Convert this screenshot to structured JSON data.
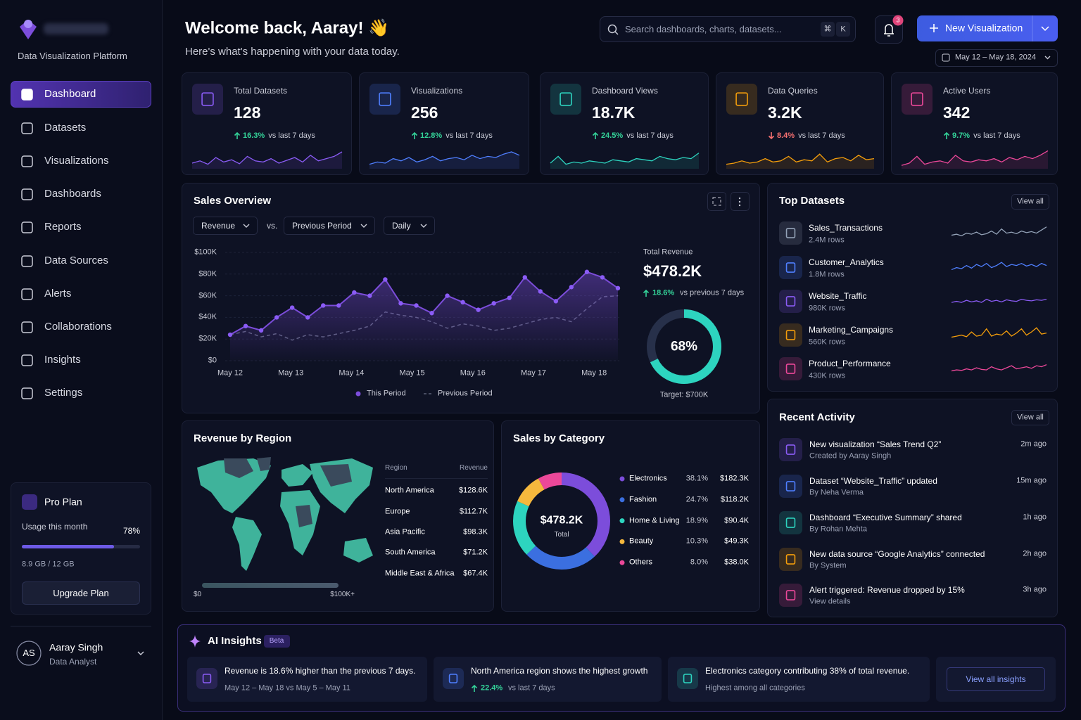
{
  "sidebar": {
    "tagline": "Data Visualization Platform",
    "nav": [
      "Dashboard",
      "Datasets",
      "Visualizations",
      "Dashboards",
      "Reports",
      "Data Sources",
      "Alerts",
      "Collaborations",
      "Insights",
      "Settings"
    ],
    "plan": {
      "title": "Pro Plan",
      "usage_label": "Usage this month",
      "usage": {
        "value": 78,
        "label": "78%"
      },
      "storage": "8.9 GB / 12 GB",
      "button": "Upgrade Plan"
    },
    "user": {
      "initials": "AS",
      "name": "Aaray Singh",
      "role": "Data Analyst"
    }
  },
  "header": {
    "title": "Welcome back, Aaray! 👋",
    "subtitle": "Here's what's happening with your data today.",
    "search": "Search dashboards, charts, datasets...",
    "shortcut": [
      "⌘",
      "K"
    ],
    "notifications": "3",
    "button": "New Visualization",
    "date_range": "May 12 – May 18, 2024"
  },
  "kpis": [
    {
      "label": "Total Datasets",
      "value": "128",
      "change": "16.3%",
      "trend": "up",
      "period": "vs last 7 days",
      "color": "#8b5cf6",
      "spark": [
        10,
        14,
        8,
        20,
        12,
        16,
        9,
        22,
        14,
        12,
        18,
        10,
        15,
        20,
        12,
        24,
        14,
        18,
        22,
        30
      ]
    },
    {
      "label": "Visualizations",
      "value": "256",
      "change": "12.8%",
      "trend": "up",
      "period": "vs last 7 days",
      "color": "#4f7fff",
      "spark": [
        8,
        12,
        10,
        18,
        14,
        20,
        12,
        16,
        22,
        14,
        18,
        20,
        16,
        24,
        18,
        22,
        20,
        26,
        30,
        24
      ]
    },
    {
      "label": "Dashboard Views",
      "value": "18.7K",
      "change": "24.5%",
      "trend": "up",
      "period": "vs last 7 days",
      "color": "#2dd4bf",
      "spark": [
        10,
        22,
        8,
        12,
        10,
        14,
        12,
        10,
        16,
        14,
        12,
        18,
        16,
        14,
        22,
        18,
        16,
        20,
        18,
        28
      ]
    },
    {
      "label": "Data Queries",
      "value": "3.2K",
      "change": "8.4%",
      "trend": "down",
      "period": "vs last 7 days",
      "color": "#f59e0b",
      "spark": [
        8,
        10,
        14,
        10,
        12,
        18,
        12,
        14,
        22,
        12,
        16,
        14,
        26,
        12,
        18,
        20,
        14,
        24,
        16,
        18
      ]
    },
    {
      "label": "Active Users",
      "value": "342",
      "change": "9.7%",
      "trend": "up",
      "period": "vs last 7 days",
      "color": "#ec4899",
      "spark": [
        6,
        10,
        22,
        8,
        12,
        14,
        10,
        24,
        14,
        12,
        16,
        14,
        18,
        12,
        20,
        16,
        22,
        18,
        24,
        32
      ]
    }
  ],
  "sales_overview": {
    "title": "Sales Overview",
    "controls": {
      "metric": "Revenue",
      "vs": "vs.",
      "compare": "Previous Period",
      "interval": "Daily"
    },
    "chart": {
      "type": "line",
      "categories": [
        "May 12",
        "May 13",
        "May 14",
        "May 15",
        "May 16",
        "May 17",
        "May 18"
      ],
      "series": [
        {
          "name": "This Period",
          "color": "#7c4ddb",
          "values": [
            24,
            32,
            28,
            40,
            49,
            40,
            51,
            51,
            63,
            60,
            75,
            53,
            51,
            44,
            60,
            54,
            47,
            53,
            58,
            77,
            64,
            55,
            68,
            82,
            77,
            67
          ]
        },
        {
          "name": "Previous Period",
          "color": "#5b6178",
          "values": [
            24,
            27,
            22,
            25,
            19,
            24,
            22,
            25,
            28,
            32,
            45,
            42,
            40,
            36,
            30,
            34,
            32,
            28,
            30,
            34,
            38,
            40,
            36,
            48,
            59,
            60
          ]
        }
      ],
      "ylim": [
        0,
        100
      ],
      "yticks": [
        {
          "value": 0,
          "label": "$0"
        },
        {
          "value": 20,
          "label": "$20K"
        },
        {
          "value": 40,
          "label": "$40K"
        },
        {
          "value": 60,
          "label": "$60K"
        },
        {
          "value": 80,
          "label": "$80K"
        },
        {
          "value": 100,
          "label": "$100K"
        }
      ],
      "grid": true
    },
    "summary": {
      "label": "Total Revenue",
      "value": "$478.2K",
      "change": "18.6%",
      "period": "vs previous 7 days",
      "progress": {
        "value": 68,
        "label": "68%"
      },
      "target": "Target: $700K"
    }
  },
  "top_datasets": {
    "title": "Top Datasets",
    "action": "View all",
    "items": [
      {
        "name": "Sales_Transactions",
        "rows": "2.4M rows",
        "color": "#94a3b8",
        "spark": [
          10,
          12,
          9,
          14,
          12,
          16,
          11,
          13,
          18,
          12,
          22,
          14,
          16,
          13,
          18,
          15,
          17,
          14,
          20,
          26
        ]
      },
      {
        "name": "Customer_Analytics",
        "rows": "1.8M rows",
        "color": "#4f7fff",
        "spark": [
          10,
          14,
          12,
          18,
          13,
          20,
          16,
          22,
          14,
          18,
          24,
          16,
          20,
          18,
          22,
          17,
          20,
          16,
          22,
          18
        ]
      },
      {
        "name": "Website_Traffic",
        "rows": "980K rows",
        "color": "#8b5cf6",
        "spark": [
          12,
          14,
          12,
          16,
          13,
          15,
          12,
          18,
          14,
          16,
          13,
          17,
          15,
          14,
          18,
          16,
          15,
          17,
          16,
          18
        ]
      },
      {
        "name": "Marketing_Campaigns",
        "rows": "560K rows",
        "color": "#f59e0b",
        "spark": [
          10,
          12,
          14,
          11,
          20,
          12,
          14,
          26,
          12,
          16,
          14,
          22,
          12,
          18,
          26,
          14,
          20,
          28,
          16,
          18
        ]
      },
      {
        "name": "Product_Performance",
        "rows": "430K rows",
        "color": "#ec4899",
        "spark": [
          10,
          12,
          11,
          14,
          12,
          16,
          13,
          12,
          18,
          14,
          12,
          16,
          20,
          14,
          16,
          18,
          15,
          20,
          18,
          22
        ]
      }
    ]
  },
  "recent_activity": {
    "title": "Recent Activity",
    "action": "View all",
    "items": [
      {
        "title": "New visualization “Sales Trend Q2”",
        "detail": "Created by Aaray Singh",
        "time": "2m ago",
        "color": "#8b5cf6"
      },
      {
        "title": "Dataset “Website_Traffic” updated",
        "detail": "By Neha Verma",
        "time": "15m ago",
        "color": "#4f7fff"
      },
      {
        "title": "Dashboard “Executive Summary” shared",
        "detail": "By Rohan Mehta",
        "time": "1h ago",
        "color": "#2dd4bf"
      },
      {
        "title": "New data source “Google Analytics” connected",
        "detail": "By System",
        "time": "2h ago",
        "color": "#f59e0b"
      },
      {
        "title": "Alert triggered: Revenue dropped by 15%",
        "detail": "View details",
        "time": "3h ago",
        "color": "#ec4899"
      }
    ]
  },
  "revenue_by_region": {
    "title": "Revenue by Region",
    "columns": [
      "Region",
      "Revenue"
    ],
    "rows": [
      [
        "North America",
        "$128.6K"
      ],
      [
        "Europe",
        "$112.7K"
      ],
      [
        "Asia Pacific",
        "$98.3K"
      ],
      [
        "South America",
        "$71.2K"
      ],
      [
        "Middle East & Africa",
        "$67.4K"
      ]
    ],
    "scale": [
      "$0",
      "$100K+"
    ]
  },
  "sales_by_category": {
    "title": "Sales by Category",
    "center_value": "$478.2K",
    "center_label": "Total",
    "chart": {
      "type": "pie",
      "categories": [
        "Electronics",
        "Fashion",
        "Home & Living",
        "Beauty",
        "Others"
      ],
      "values": [
        38.1,
        24.7,
        18.9,
        10.3,
        8.0
      ],
      "value_labels": [
        "38.1%",
        "24.7%",
        "18.9%",
        "10.3%",
        "8.0%"
      ],
      "amounts": [
        "$182.3K",
        "$118.2K",
        "$90.4K",
        "$49.3K",
        "$38.0K"
      ],
      "colors": [
        "#7c4ddb",
        "#3b6fe0",
        "#2dd4bf",
        "#f5b83d",
        "#ec4899"
      ]
    }
  },
  "ai_insights": {
    "title": "AI Insights",
    "badge": "Beta",
    "button": "View all insights",
    "items": [
      {
        "text": "Revenue is 18.6% higher than the previous 7 days.",
        "detail": "May 12 – May 18 vs May 5 – May 11"
      },
      {
        "text": "North America region shows the highest growth",
        "change": "22.4%",
        "period": "vs last 7 days"
      },
      {
        "text": "Electronics category contributing 38% of total revenue.",
        "detail": "Highest among all categories"
      }
    ]
  }
}
